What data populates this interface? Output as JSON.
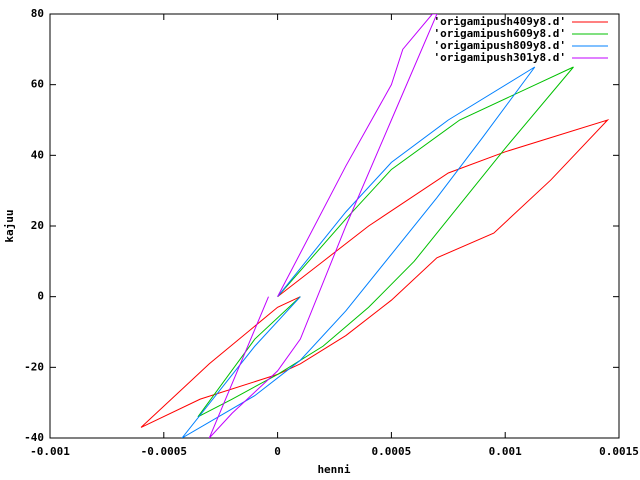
{
  "chart_data": {
    "type": "line",
    "xlabel": "henni",
    "ylabel": "kajuu",
    "xlim": [
      -0.001,
      0.0015
    ],
    "ylim": [
      -40,
      80
    ],
    "xticks": [
      -0.001,
      -0.0005,
      0,
      0.0005,
      0.001,
      0.0015
    ],
    "yticks": [
      -40,
      -20,
      0,
      20,
      40,
      60,
      80
    ],
    "legend": "upper right",
    "series": [
      {
        "name": "'origamipush409y8.d'",
        "color": "#ff0000",
        "x": [
          0,
          0.0002,
          0.0004,
          0.00075,
          0.001,
          0.00145,
          0.0012,
          0.00095,
          0.0007,
          0.0005,
          0.0003,
          0.0001,
          0,
          -0.00034,
          -0.0006,
          -0.0003,
          0,
          0.0001
        ],
        "values": [
          0,
          10,
          20,
          35,
          41,
          50,
          33,
          18,
          11,
          -1,
          -11,
          -19,
          -22,
          -29,
          -37,
          -19,
          -3,
          0
        ]
      },
      {
        "name": "'origamipush609y8.d'",
        "color": "#00c000",
        "x": [
          0,
          0.0003,
          0.0005,
          0.0008,
          0.0013,
          0.001,
          0.0008,
          0.0006,
          0.0004,
          0.0002,
          0,
          -0.0002,
          -0.00035,
          -0.0001,
          0.0001
        ],
        "values": [
          0,
          22,
          36,
          50,
          65,
          42,
          26,
          10,
          -3,
          -14,
          -22,
          -29,
          -34,
          -12,
          0
        ]
      },
      {
        "name": "'origamipush809y8.d'",
        "color": "#0080ff",
        "x": [
          0,
          0.0003,
          0.0005,
          0.00075,
          0.00113,
          0.0009,
          0.0007,
          0.0005,
          0.0003,
          0.0001,
          -0.0001,
          -0.00042,
          -0.0001,
          0.0001
        ],
        "values": [
          0,
          24,
          38,
          50,
          65,
          45,
          28,
          12,
          -4,
          -18,
          -28,
          -40,
          -14,
          0
        ]
      },
      {
        "name": "'origamipush301y8.d'",
        "color": "#c000ff",
        "x": [
          0,
          0.0003,
          0.0005,
          0.00055,
          0.00068,
          0.0007,
          0.0005,
          0.0003,
          0.0001,
          0,
          -0.0002,
          -0.0003,
          -4e-05
        ],
        "values": [
          0,
          37,
          60,
          70,
          80,
          80,
          50,
          20,
          -12,
          -21,
          -33,
          -40,
          0
        ]
      }
    ]
  }
}
